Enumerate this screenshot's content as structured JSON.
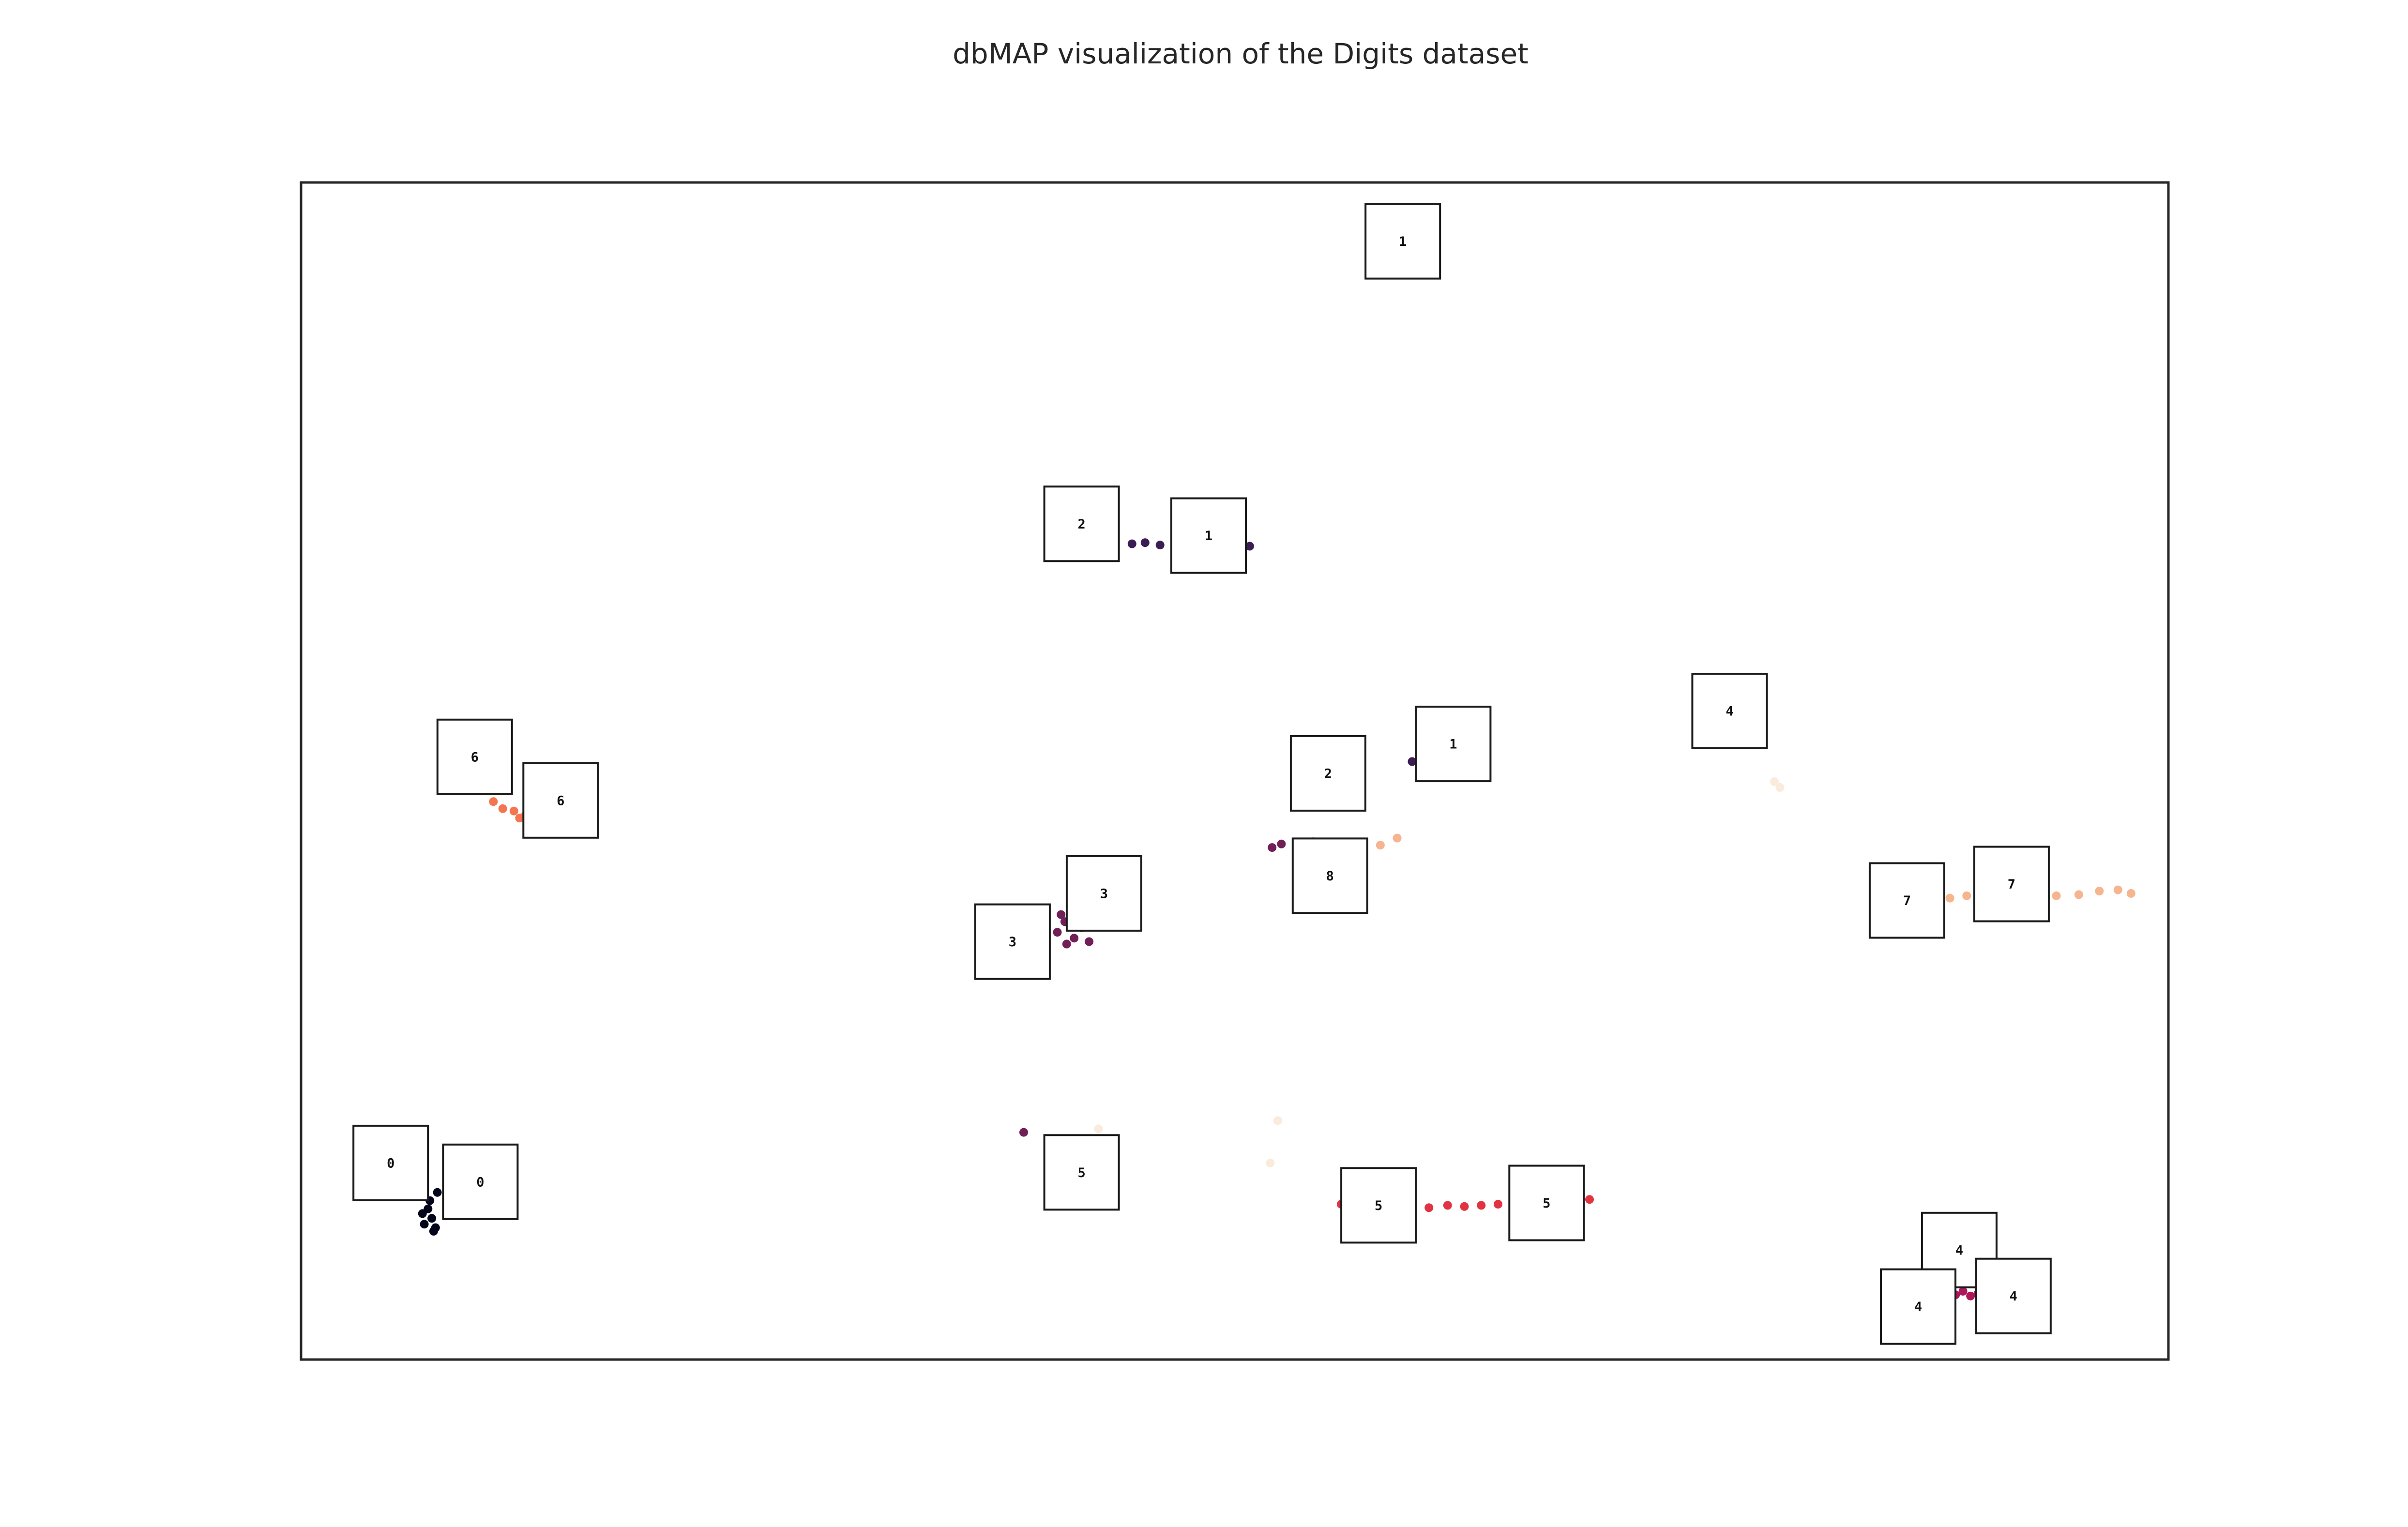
{
  "chart_data": {
    "type": "scatter",
    "title": "dbMAP visualization of the Digits dataset",
    "xlabel": "",
    "ylabel": "",
    "axes_ticks": false,
    "grid": false,
    "legend": "none",
    "xlim": [
      0,
      100
    ],
    "ylim": [
      0,
      100
    ],
    "series": [
      {
        "color": "#03051a",
        "points": [
          [
            6.8,
            12.8
          ],
          [
            7.0,
            12.0
          ],
          [
            6.6,
            11.5
          ],
          [
            7.2,
            11.2
          ],
          [
            6.9,
            13.5
          ],
          [
            7.3,
            14.2
          ],
          [
            7.1,
            10.9
          ],
          [
            6.5,
            12.4
          ]
        ]
      },
      {
        "color": "#3b1d53",
        "points": [
          [
            44.5,
            69.3
          ],
          [
            45.2,
            69.4
          ],
          [
            46.0,
            69.2
          ],
          [
            46.8,
            69.5
          ],
          [
            47.5,
            69.1
          ],
          [
            48.3,
            69.4
          ],
          [
            49.2,
            69.0
          ],
          [
            50.1,
            69.3
          ],
          [
            50.8,
            69.1
          ],
          [
            60.5,
            51.2
          ],
          [
            59.5,
            50.8
          ]
        ]
      },
      {
        "color": "#701f57",
        "points": [
          [
            40.5,
            36.3
          ],
          [
            40.9,
            37.2
          ],
          [
            41.4,
            35.8
          ],
          [
            41.8,
            36.7
          ],
          [
            42.2,
            35.5
          ],
          [
            41.0,
            35.3
          ],
          [
            40.7,
            37.8
          ],
          [
            52.5,
            43.8
          ],
          [
            52.0,
            43.5
          ],
          [
            38.7,
            19.3
          ]
        ]
      },
      {
        "color": "#ad1759",
        "points": [
          [
            88.2,
            5.6
          ],
          [
            88.6,
            5.5
          ],
          [
            89.0,
            5.8
          ],
          [
            89.4,
            5.4
          ],
          [
            89.8,
            5.6
          ]
        ]
      },
      {
        "color": "#e13342",
        "points": [
          [
            55.7,
            13.2
          ],
          [
            56.8,
            13.0
          ],
          [
            57.8,
            13.1
          ],
          [
            58.6,
            12.8
          ],
          [
            59.5,
            13.0
          ],
          [
            60.4,
            12.9
          ],
          [
            61.4,
            13.1
          ],
          [
            62.3,
            13.0
          ],
          [
            63.2,
            13.1
          ],
          [
            64.1,
            13.2
          ],
          [
            65.0,
            13.3
          ],
          [
            66.0,
            13.4
          ],
          [
            67.1,
            13.5
          ],
          [
            68.2,
            13.5
          ],
          [
            69.0,
            13.6
          ]
        ]
      },
      {
        "color": "#f37651",
        "points": [
          [
            10.3,
            47.4
          ],
          [
            10.8,
            46.8
          ],
          [
            11.4,
            46.6
          ],
          [
            12.0,
            46.2
          ],
          [
            12.3,
            47.5
          ],
          [
            11.7,
            46.0
          ]
        ]
      },
      {
        "color": "#f6b48f",
        "points": [
          [
            88.3,
            39.2
          ],
          [
            89.2,
            39.4
          ],
          [
            90.0,
            39.1
          ],
          [
            90.8,
            39.6
          ],
          [
            92.0,
            39.3
          ],
          [
            93.0,
            39.0
          ],
          [
            94.0,
            39.4
          ],
          [
            95.2,
            39.5
          ],
          [
            96.3,
            39.8
          ],
          [
            97.3,
            39.9
          ],
          [
            98.0,
            39.6
          ],
          [
            58.7,
            44.3
          ],
          [
            57.8,
            43.7
          ],
          [
            56.6,
            42.9
          ],
          [
            55.3,
            42.5
          ],
          [
            54.2,
            44.0
          ]
        ]
      },
      {
        "color": "#faebdd",
        "points": [
          [
            78.9,
            49.1
          ],
          [
            79.2,
            48.6
          ],
          [
            62.2,
            53.2
          ],
          [
            62.0,
            52.8
          ],
          [
            51.9,
            16.7
          ],
          [
            52.3,
            20.3
          ],
          [
            42.7,
            19.6
          ]
        ]
      }
    ],
    "thumbnails": [
      {
        "digit": "0",
        "x": 4.8,
        "y": 16.7
      },
      {
        "digit": "0",
        "x": 9.6,
        "y": 15.1
      },
      {
        "digit": "1",
        "x": 59.0,
        "y": 95.0
      },
      {
        "digit": "1",
        "x": 48.6,
        "y": 70.0
      },
      {
        "digit": "1",
        "x": 61.7,
        "y": 52.3
      },
      {
        "digit": "2",
        "x": 41.8,
        "y": 71.0
      },
      {
        "digit": "2",
        "x": 55.0,
        "y": 49.8
      },
      {
        "digit": "3",
        "x": 43.0,
        "y": 39.6
      },
      {
        "digit": "3",
        "x": 38.1,
        "y": 35.5
      },
      {
        "digit": "4",
        "x": 76.5,
        "y": 55.1
      },
      {
        "digit": "4",
        "x": 88.8,
        "y": 9.3
      },
      {
        "digit": "4",
        "x": 86.6,
        "y": 4.5
      },
      {
        "digit": "4",
        "x": 91.7,
        "y": 5.4
      },
      {
        "digit": "5",
        "x": 41.8,
        "y": 15.9
      },
      {
        "digit": "5",
        "x": 57.7,
        "y": 13.1
      },
      {
        "digit": "5",
        "x": 66.7,
        "y": 13.3
      },
      {
        "digit": "6",
        "x": 9.3,
        "y": 51.2
      },
      {
        "digit": "6",
        "x": 13.9,
        "y": 47.5
      },
      {
        "digit": "7",
        "x": 86.0,
        "y": 39.0
      },
      {
        "digit": "7",
        "x": 91.6,
        "y": 40.4
      },
      {
        "digit": "8",
        "x": 55.1,
        "y": 41.1
      }
    ]
  }
}
